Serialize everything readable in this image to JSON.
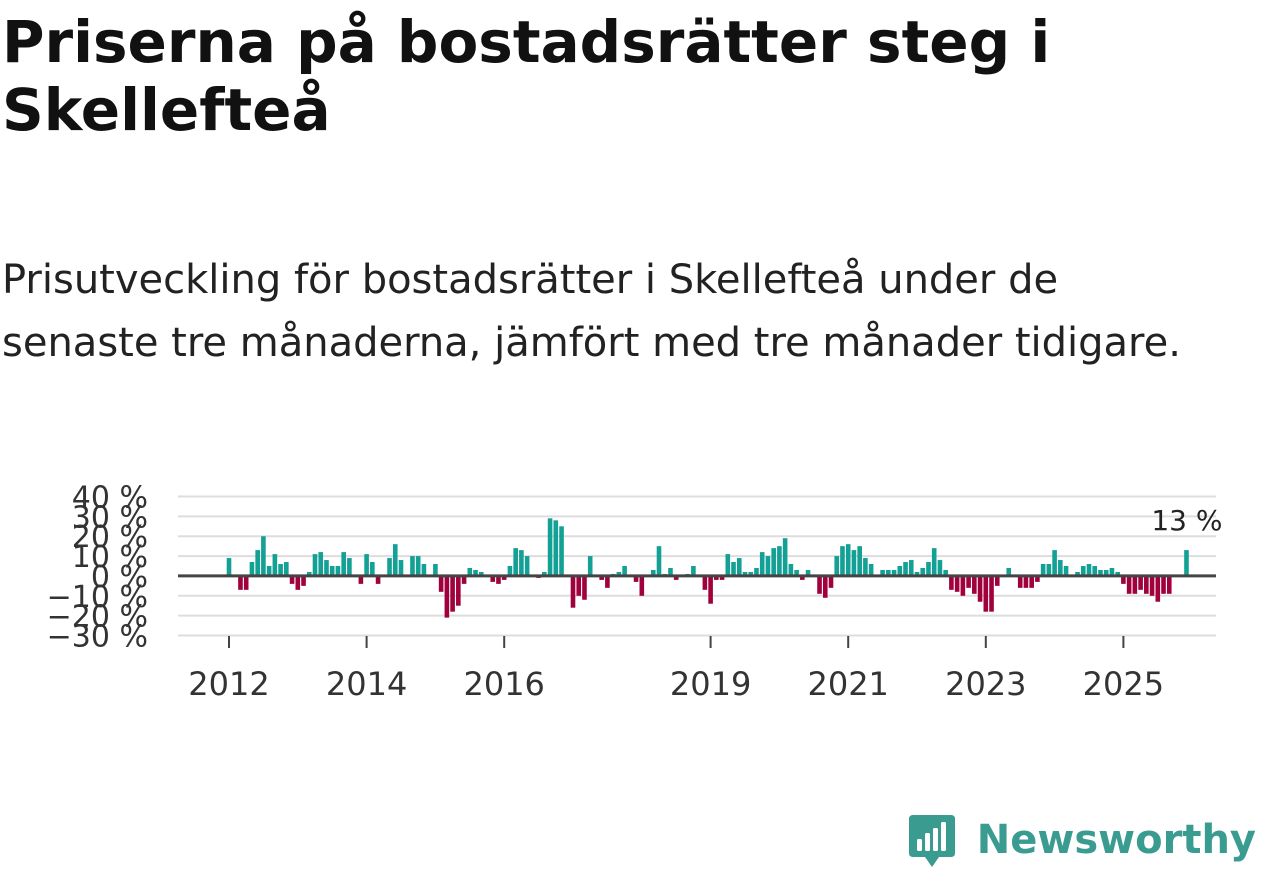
{
  "header": {
    "title": "Priserna på bostadsrätter steg i Skellefteå",
    "subtitle": "Prisutveckling för bostadsrätter i Skellefteå under de senaste tre månaderna, jämfört med tre månader tidigare."
  },
  "brand": {
    "name": "Newsworthy",
    "color": "#3a9b91",
    "icon": "newsworthy-logo-icon"
  },
  "colors": {
    "positive": "#13a095",
    "negative": "#a0003c",
    "zero_line": "#444444",
    "grid": "#dddddd"
  },
  "chart_data": {
    "type": "bar",
    "title": "Priserna på bostadsrätter steg i Skellefteå",
    "xlabel": "",
    "ylabel": "",
    "ylim": [
      -30,
      40
    ],
    "y_ticks": [
      40,
      30,
      20,
      10,
      0,
      -10,
      -20,
      -30
    ],
    "y_tick_labels": [
      "40 %",
      "30 %",
      "20 %",
      "10 %",
      "0 %",
      "−10 %",
      "−20 %",
      "−30 %"
    ],
    "x_ticks": [
      2012,
      2014,
      2016,
      2019,
      2021,
      2023,
      2025
    ],
    "x_tick_labels": [
      "2012",
      "2014",
      "2016",
      "2019",
      "2021",
      "2023",
      "2025"
    ],
    "start": "2012-01",
    "period": "monthly",
    "annotation": {
      "text": "13 %",
      "target": "last"
    },
    "values": [
      9,
      0,
      -7,
      -7,
      7,
      13,
      20,
      5,
      11,
      6,
      7,
      -4,
      -7,
      -5,
      2,
      11,
      12,
      8,
      5,
      5,
      12,
      9,
      0,
      -4,
      11,
      7,
      -4,
      0,
      9,
      16,
      8,
      0,
      10,
      10,
      6,
      0,
      6,
      -8,
      -21,
      -18,
      -15,
      -4,
      4,
      3,
      2,
      0,
      -3,
      -4,
      -2,
      5,
      14,
      13,
      10,
      0,
      -1,
      2,
      29,
      28,
      25,
      0,
      -16,
      -10,
      -12,
      10,
      0,
      -2,
      -6,
      1,
      2,
      5,
      0,
      -3,
      -10,
      0,
      3,
      15,
      1,
      4,
      -2,
      0,
      1,
      5,
      0,
      -7,
      -14,
      -2,
      -2,
      11,
      7,
      9,
      2,
      2,
      4,
      12,
      10,
      14,
      15,
      19,
      6,
      3,
      -2,
      3,
      0,
      -9,
      -11,
      -6,
      10,
      15,
      16,
      13,
      15,
      9,
      6,
      0,
      3,
      3,
      3,
      5,
      7,
      8,
      2,
      4,
      7,
      14,
      8,
      3,
      -7,
      -8,
      -10,
      -6,
      -9,
      -13,
      -18,
      -18,
      -5,
      0,
      4,
      0,
      -6,
      -6,
      -6,
      -3,
      6,
      6,
      13,
      8,
      5,
      0,
      2,
      5,
      6,
      5,
      3,
      3,
      4,
      2,
      -4,
      -9,
      -9,
      -7,
      -9,
      -10,
      -13,
      -9,
      -9,
      0,
      0,
      13
    ]
  }
}
